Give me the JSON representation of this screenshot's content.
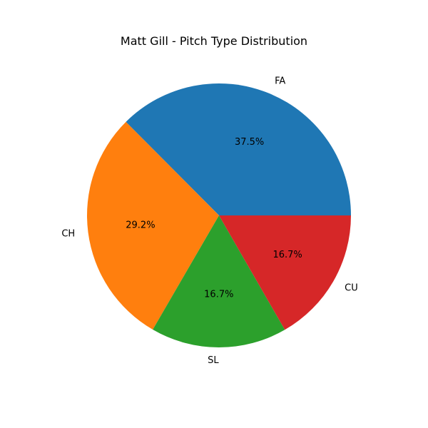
{
  "chart_data": {
    "type": "pie",
    "title": "Matt Gill - Pitch Type Distribution",
    "categories": [
      "FA",
      "CH",
      "SL",
      "CU"
    ],
    "values": [
      37.5,
      29.2,
      16.7,
      16.7
    ],
    "percent_labels": [
      "37.5%",
      "29.2%",
      "16.7%",
      "16.7%"
    ],
    "colors": [
      "#1f77b4",
      "#ff7f0e",
      "#2ca02c",
      "#d62728"
    ],
    "start_angle_deg": 0,
    "direction": "counterclockwise"
  }
}
